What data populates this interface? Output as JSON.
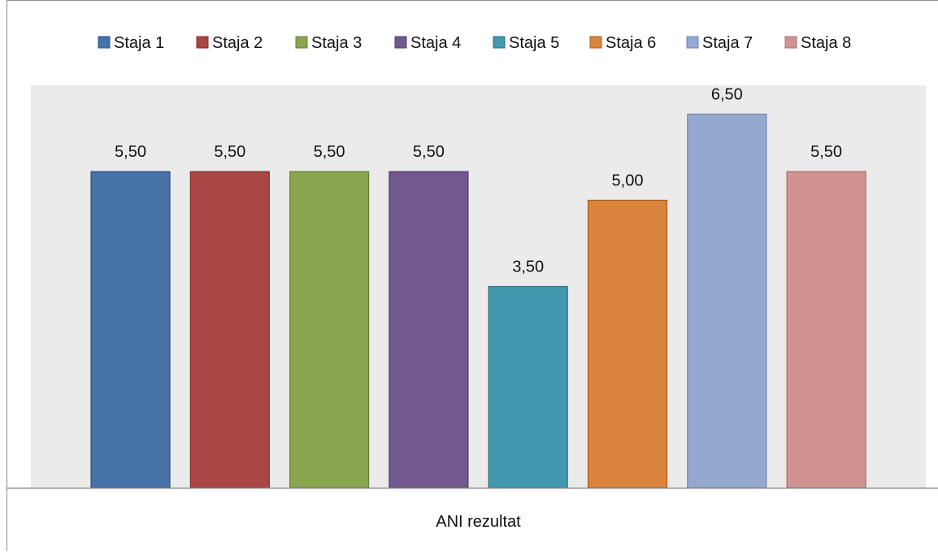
{
  "chart_data": {
    "type": "bar",
    "title": "",
    "xlabel": "ANI rezultat",
    "ylabel": "",
    "categories": [
      "ANI rezultat"
    ],
    "series": [
      {
        "name": "Staja 1",
        "values": [
          5.5
        ],
        "label": "5,50",
        "color": "#4572a7",
        "stroke": "#2f5283"
      },
      {
        "name": "Staja 2",
        "values": [
          5.5
        ],
        "label": "5,50",
        "color": "#aa4643",
        "stroke": "#7e2f2d"
      },
      {
        "name": "Staja 3",
        "values": [
          5.5
        ],
        "label": "5,50",
        "color": "#89a54e",
        "stroke": "#64803a"
      },
      {
        "name": "Staja 4",
        "values": [
          5.5
        ],
        "label": "5,50",
        "color": "#71588f",
        "stroke": "#513d6d"
      },
      {
        "name": "Staja 5",
        "values": [
          3.5
        ],
        "label": "3,50",
        "color": "#4198af",
        "stroke": "#2a7082"
      },
      {
        "name": "Staja 6",
        "values": [
          5.0
        ],
        "label": "5,00",
        "color": "#db843d",
        "stroke": "#a55f22"
      },
      {
        "name": "Staja 7",
        "values": [
          6.5
        ],
        "label": "6,50",
        "color": "#93a9cf",
        "stroke": "#6e85b0"
      },
      {
        "name": "Staja 8",
        "values": [
          5.5
        ],
        "label": "5,50",
        "color": "#d19392",
        "stroke": "#a86f6e"
      }
    ],
    "ylim": [
      0,
      7
    ],
    "grid": false,
    "legend": "top",
    "plot_background": "#ebebeb"
  }
}
